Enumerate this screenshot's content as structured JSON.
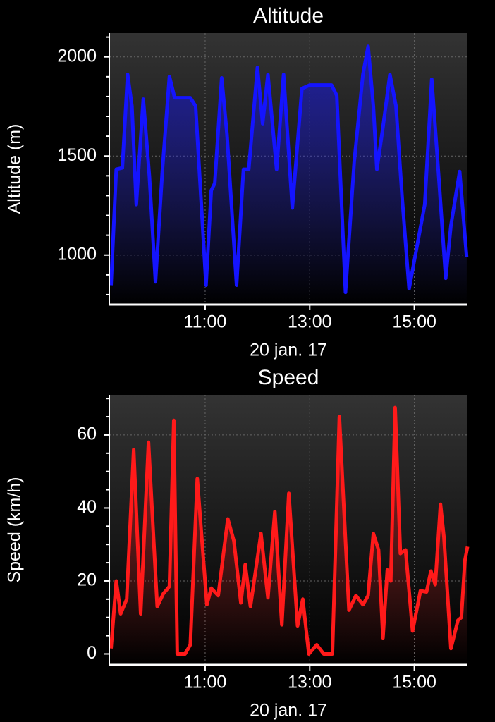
{
  "chart_data": [
    {
      "type": "line",
      "title": "Altitude",
      "ylabel": "Altitude (m)",
      "xlabel": "20 jan. 17",
      "color": "#1414ff",
      "grid": true,
      "xlim": [
        "09:10",
        "16:01"
      ],
      "xticks": [
        "11:00",
        "13:00",
        "15:00"
      ],
      "ylim": [
        750,
        2120
      ],
      "yticks": [
        1000,
        1500,
        2000
      ],
      "yticks_minor": [
        800,
        900,
        1100,
        1200,
        1300,
        1400,
        1600,
        1700,
        1800,
        1900,
        2100
      ],
      "x": [
        "09:12",
        "09:18",
        "09:25",
        "09:31",
        "09:36",
        "09:41",
        "09:49",
        "09:56",
        "10:03",
        "10:11",
        "10:19",
        "10:25",
        "10:43",
        "10:49",
        "11:01",
        "11:07",
        "11:11",
        "11:19",
        "11:25",
        "11:36",
        "11:44",
        "11:50",
        "12:00",
        "12:06",
        "12:12",
        "12:22",
        "12:30",
        "12:40",
        "12:51",
        "13:00",
        "13:25",
        "13:31",
        "13:41",
        "13:51",
        "14:01",
        "14:07",
        "14:13",
        "14:17",
        "14:24",
        "14:32",
        "14:39",
        "14:46",
        "14:54",
        "15:03",
        "15:12",
        "15:20",
        "15:28",
        "15:36",
        "15:42",
        "15:52",
        "16:00"
      ],
      "values": [
        848,
        1433,
        1440,
        1911,
        1752,
        1255,
        1787,
        1397,
        865,
        1433,
        1901,
        1794,
        1794,
        1752,
        848,
        1326,
        1362,
        1894,
        1610,
        848,
        1433,
        1433,
        1947,
        1663,
        1911,
        1433,
        1911,
        1238,
        1840,
        1858,
        1858,
        1805,
        812,
        1468,
        1911,
        2053,
        1752,
        1433,
        1645,
        1911,
        1752,
        1291,
        830,
        1043,
        1255,
        1887,
        1397,
        883,
        1149,
        1422,
        989
      ]
    },
    {
      "type": "line",
      "title": "Speed",
      "ylabel": "Speed (km/h)",
      "xlabel": "20 jan. 17",
      "color": "#ff1a1a",
      "grid": true,
      "xlim": [
        "09:10",
        "16:01"
      ],
      "xticks": [
        "11:00",
        "13:00",
        "15:00"
      ],
      "ylim": [
        -3,
        71
      ],
      "yticks": [
        0,
        20,
        40,
        60
      ],
      "yticks_minor": [
        5,
        10,
        15,
        25,
        30,
        35,
        45,
        50,
        55,
        65,
        70
      ],
      "x": [
        "09:12",
        "09:18",
        "09:23",
        "09:30",
        "09:38",
        "09:46",
        "09:55",
        "10:05",
        "10:12",
        "10:19",
        "10:24",
        "10:28",
        "10:37",
        "10:43",
        "10:51",
        "11:02",
        "11:07",
        "11:15",
        "11:26",
        "11:33",
        "11:41",
        "11:46",
        "11:52",
        "12:04",
        "12:12",
        "12:20",
        "12:28",
        "12:36",
        "12:46",
        "12:52",
        "12:59",
        "13:08",
        "13:16",
        "13:26",
        "13:34",
        "13:45",
        "13:53",
        "14:01",
        "14:07",
        "14:13",
        "14:19",
        "14:24",
        "14:29",
        "14:33",
        "14:38",
        "14:44",
        "14:50",
        "14:58",
        "15:07",
        "15:14",
        "15:19",
        "15:24",
        "15:30",
        "15:34",
        "15:42",
        "15:50",
        "15:54",
        "15:58",
        "16:01"
      ],
      "values": [
        1.5,
        20,
        11,
        15,
        56,
        11,
        58,
        13,
        16.5,
        18.5,
        64,
        0,
        0,
        2.5,
        48,
        13.5,
        18,
        16,
        37,
        31,
        14,
        24.5,
        13,
        33,
        15.4,
        39,
        8,
        44,
        7.7,
        15,
        0,
        2.5,
        0,
        0,
        65,
        12,
        16,
        13.5,
        16,
        33,
        28.5,
        4.4,
        23,
        20,
        67.5,
        27.5,
        28.5,
        6.3,
        17.3,
        17,
        22.7,
        19,
        41,
        32,
        1.5,
        9.2,
        10,
        25.6,
        29.4
      ]
    }
  ]
}
